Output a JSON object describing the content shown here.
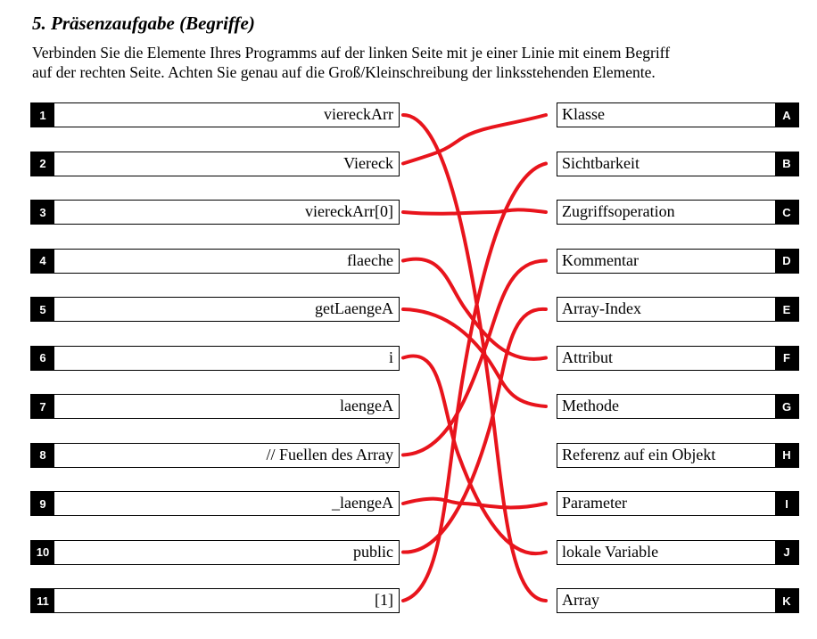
{
  "task": {
    "title": "5.  Präsenzaufgabe (Begriffe)",
    "instruction_line1": "Verbinden Sie die Elemente Ihres Programms auf der linken Seite mit je einer Linie mit einem Begriff",
    "instruction_line2": "auf der rechten Seite. Achten Sie genau auf die Groß/Kleinschreibung der linksstehenden Elemente."
  },
  "left_items": [
    {
      "num": "1",
      "label": "viereckArr"
    },
    {
      "num": "2",
      "label": "Viereck"
    },
    {
      "num": "3",
      "label": "viereckArr[0]"
    },
    {
      "num": "4",
      "label": "flaeche"
    },
    {
      "num": "5",
      "label": "getLaengeA"
    },
    {
      "num": "6",
      "label": "i"
    },
    {
      "num": "7",
      "label": "laengeA"
    },
    {
      "num": "8",
      "label": "// Fuellen des Array"
    },
    {
      "num": "9",
      "label": "_laengeA"
    },
    {
      "num": "10",
      "label": "public"
    },
    {
      "num": "11",
      "label": "[1]"
    }
  ],
  "right_items": [
    {
      "letter": "A",
      "label": "Klasse"
    },
    {
      "letter": "B",
      "label": "Sichtbarkeit"
    },
    {
      "letter": "C",
      "label": "Zugriffsoperation"
    },
    {
      "letter": "D",
      "label": "Kommentar"
    },
    {
      "letter": "E",
      "label": "Array-Index"
    },
    {
      "letter": "F",
      "label": "Attribut"
    },
    {
      "letter": "G",
      "label": "Methode"
    },
    {
      "letter": "H",
      "label": "Referenz auf ein Objekt"
    },
    {
      "letter": "I",
      "label": "Parameter"
    },
    {
      "letter": "J",
      "label": "lokale Variable"
    },
    {
      "letter": "K",
      "label": "Array"
    }
  ],
  "connections": [
    {
      "from": "1",
      "to": "K"
    },
    {
      "from": "2",
      "to": "A"
    },
    {
      "from": "3",
      "to": "C"
    },
    {
      "from": "4",
      "to": "F"
    },
    {
      "from": "5",
      "to": "G"
    },
    {
      "from": "6",
      "to": "J"
    },
    {
      "from": "8",
      "to": "D"
    },
    {
      "from": "9",
      "to": "I"
    },
    {
      "from": "10",
      "to": "E"
    },
    {
      "from": "11",
      "to": "B"
    }
  ],
  "colors": {
    "ink": "#000000",
    "pen": "#e8141c"
  }
}
